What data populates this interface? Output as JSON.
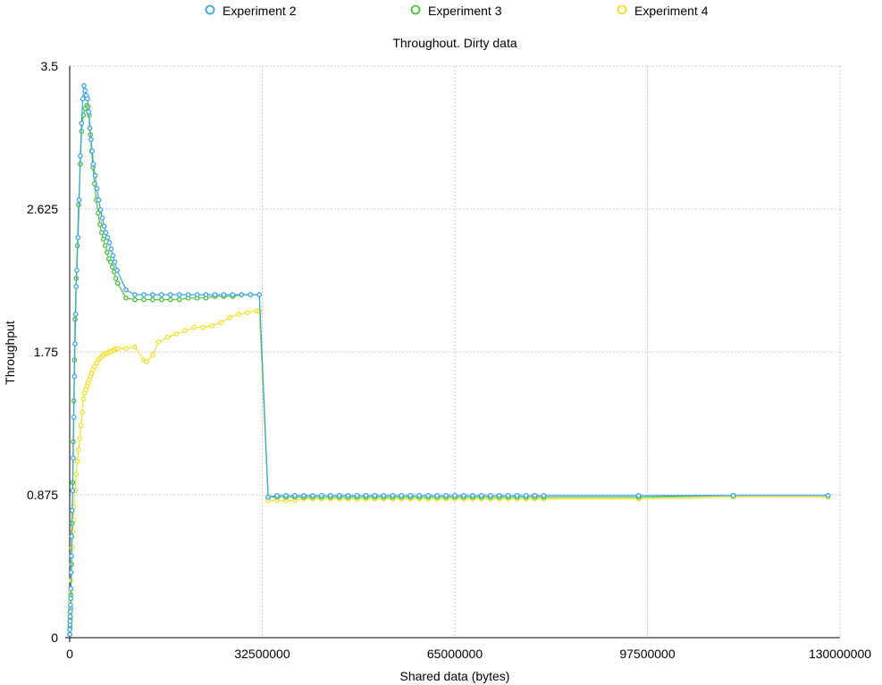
{
  "chart_data": {
    "type": "line",
    "title": "Throughout. Dirty data",
    "xlabel": "Shared data (bytes)",
    "ylabel": "Throughput",
    "xlim": [
      0,
      130000000
    ],
    "ylim": [
      0,
      3.5
    ],
    "xticks": [
      "0",
      "32500000",
      "65000000",
      "97500000",
      "130000000"
    ],
    "yticks": [
      "0",
      "0.875",
      "1.75",
      "2.625",
      "3.5"
    ],
    "grid": true,
    "legend_position": "top",
    "series": [
      {
        "name": "Experiment 2",
        "color": "#3da5e6",
        "points": [
          [
            0,
            0.02
          ],
          [
            20000,
            0.05
          ],
          [
            40000,
            0.08
          ],
          [
            60000,
            0.1
          ],
          [
            80000,
            0.13
          ],
          [
            100000,
            0.16
          ],
          [
            130000,
            0.2
          ],
          [
            160000,
            0.24
          ],
          [
            200000,
            0.3
          ],
          [
            250000,
            0.4
          ],
          [
            300000,
            0.5
          ],
          [
            350000,
            0.62
          ],
          [
            400000,
            0.78
          ],
          [
            500000,
            0.9
          ],
          [
            600000,
            1.1
          ],
          [
            700000,
            1.35
          ],
          [
            800000,
            1.6
          ],
          [
            900000,
            1.8
          ],
          [
            1000000,
            1.98
          ],
          [
            1100000,
            2.15
          ],
          [
            1200000,
            2.25
          ],
          [
            1400000,
            2.45
          ],
          [
            1600000,
            2.68
          ],
          [
            1800000,
            2.95
          ],
          [
            2000000,
            3.15
          ],
          [
            2200000,
            3.3
          ],
          [
            2400000,
            3.38
          ],
          [
            2600000,
            3.35
          ],
          [
            2800000,
            3.32
          ],
          [
            3000000,
            3.3
          ],
          [
            3200000,
            3.22
          ],
          [
            3400000,
            3.12
          ],
          [
            3600000,
            3.05
          ],
          [
            3800000,
            2.98
          ],
          [
            4000000,
            2.9
          ],
          [
            4300000,
            2.83
          ],
          [
            4600000,
            2.75
          ],
          [
            4900000,
            2.68
          ],
          [
            5200000,
            2.62
          ],
          [
            5500000,
            2.57
          ],
          [
            5800000,
            2.52
          ],
          [
            6100000,
            2.48
          ],
          [
            6400000,
            2.45
          ],
          [
            6700000,
            2.42
          ],
          [
            7000000,
            2.38
          ],
          [
            7300000,
            2.34
          ],
          [
            7600000,
            2.3
          ],
          [
            8000000,
            2.25
          ],
          [
            9500000,
            2.13
          ],
          [
            11000000,
            2.1
          ],
          [
            12500000,
            2.1
          ],
          [
            14000000,
            2.1
          ],
          [
            15500000,
            2.1
          ],
          [
            17000000,
            2.1
          ],
          [
            18500000,
            2.1
          ],
          [
            20000000,
            2.1
          ],
          [
            21500000,
            2.1
          ],
          [
            23000000,
            2.1
          ],
          [
            24500000,
            2.1
          ],
          [
            26000000,
            2.1
          ],
          [
            27500000,
            2.1
          ],
          [
            29000000,
            2.1
          ],
          [
            30500000,
            2.1
          ],
          [
            32000000,
            2.1
          ],
          [
            33500000,
            0.86
          ],
          [
            35000000,
            0.87
          ],
          [
            36500000,
            0.87
          ],
          [
            38000000,
            0.87
          ],
          [
            39500000,
            0.87
          ],
          [
            41000000,
            0.87
          ],
          [
            42500000,
            0.87
          ],
          [
            44000000,
            0.87
          ],
          [
            45500000,
            0.87
          ],
          [
            47000000,
            0.87
          ],
          [
            48500000,
            0.87
          ],
          [
            50000000,
            0.87
          ],
          [
            51500000,
            0.87
          ],
          [
            53000000,
            0.87
          ],
          [
            54500000,
            0.87
          ],
          [
            56000000,
            0.87
          ],
          [
            57500000,
            0.87
          ],
          [
            59000000,
            0.87
          ],
          [
            60500000,
            0.87
          ],
          [
            62000000,
            0.87
          ],
          [
            63500000,
            0.87
          ],
          [
            65000000,
            0.87
          ],
          [
            66500000,
            0.87
          ],
          [
            68000000,
            0.87
          ],
          [
            69500000,
            0.87
          ],
          [
            71000000,
            0.87
          ],
          [
            72500000,
            0.87
          ],
          [
            74000000,
            0.87
          ],
          [
            75500000,
            0.87
          ],
          [
            77000000,
            0.87
          ],
          [
            78500000,
            0.87
          ],
          [
            80000000,
            0.87
          ],
          [
            96000000,
            0.87
          ],
          [
            112000000,
            0.87
          ],
          [
            128000000,
            0.87
          ]
        ]
      },
      {
        "name": "Experiment 3",
        "color": "#4cc13a",
        "points": [
          [
            0,
            0.02
          ],
          [
            50000,
            0.06
          ],
          [
            100000,
            0.12
          ],
          [
            150000,
            0.18
          ],
          [
            200000,
            0.26
          ],
          [
            300000,
            0.45
          ],
          [
            400000,
            0.7
          ],
          [
            500000,
            0.95
          ],
          [
            600000,
            1.2
          ],
          [
            700000,
            1.45
          ],
          [
            800000,
            1.7
          ],
          [
            900000,
            1.95
          ],
          [
            1100000,
            2.2
          ],
          [
            1300000,
            2.4
          ],
          [
            1500000,
            2.65
          ],
          [
            1800000,
            2.9
          ],
          [
            2000000,
            3.1
          ],
          [
            2300000,
            3.2
          ],
          [
            2600000,
            3.24
          ],
          [
            2900000,
            3.26
          ],
          [
            3100000,
            3.25
          ],
          [
            3300000,
            3.2
          ],
          [
            3500000,
            3.08
          ],
          [
            3700000,
            2.98
          ],
          [
            3900000,
            2.88
          ],
          [
            4200000,
            2.78
          ],
          [
            4500000,
            2.68
          ],
          [
            4800000,
            2.6
          ],
          [
            5100000,
            2.53
          ],
          [
            5400000,
            2.48
          ],
          [
            5700000,
            2.44
          ],
          [
            6000000,
            2.4
          ],
          [
            6300000,
            2.36
          ],
          [
            6600000,
            2.32
          ],
          [
            6900000,
            2.3
          ],
          [
            7200000,
            2.27
          ],
          [
            7500000,
            2.24
          ],
          [
            7800000,
            2.2
          ],
          [
            8100000,
            2.17
          ],
          [
            9500000,
            2.08
          ],
          [
            11000000,
            2.07
          ],
          [
            12500000,
            2.07
          ],
          [
            14000000,
            2.07
          ],
          [
            15500000,
            2.07
          ],
          [
            17000000,
            2.07
          ],
          [
            18500000,
            2.07
          ],
          [
            20000000,
            2.08
          ],
          [
            21500000,
            2.08
          ],
          [
            23000000,
            2.08
          ],
          [
            24500000,
            2.09
          ],
          [
            26000000,
            2.09
          ],
          [
            27500000,
            2.09
          ],
          [
            29000000,
            2.1
          ],
          [
            30500000,
            2.1
          ],
          [
            32000000,
            2.1
          ],
          [
            33500000,
            0.86
          ],
          [
            35000000,
            0.86
          ],
          [
            36500000,
            0.86
          ],
          [
            38000000,
            0.86
          ],
          [
            39500000,
            0.86
          ],
          [
            41000000,
            0.86
          ],
          [
            42500000,
            0.86
          ],
          [
            44000000,
            0.86
          ],
          [
            45500000,
            0.86
          ],
          [
            47000000,
            0.86
          ],
          [
            48500000,
            0.86
          ],
          [
            50000000,
            0.86
          ],
          [
            51500000,
            0.86
          ],
          [
            53000000,
            0.86
          ],
          [
            54500000,
            0.86
          ],
          [
            56000000,
            0.86
          ],
          [
            57500000,
            0.86
          ],
          [
            59000000,
            0.86
          ],
          [
            60500000,
            0.86
          ],
          [
            62000000,
            0.86
          ],
          [
            63500000,
            0.86
          ],
          [
            65000000,
            0.86
          ],
          [
            66500000,
            0.86
          ],
          [
            68000000,
            0.86
          ],
          [
            69500000,
            0.86
          ],
          [
            71000000,
            0.86
          ],
          [
            72500000,
            0.86
          ],
          [
            74000000,
            0.86
          ],
          [
            75500000,
            0.86
          ],
          [
            77000000,
            0.86
          ],
          [
            78500000,
            0.86
          ],
          [
            80000000,
            0.86
          ],
          [
            96000000,
            0.86
          ],
          [
            112000000,
            0.87
          ],
          [
            128000000,
            0.87
          ]
        ]
      },
      {
        "name": "Experiment 4",
        "color": "#f0e12a",
        "points": [
          [
            0,
            0.1
          ],
          [
            50000,
            0.15
          ],
          [
            100000,
            0.22
          ],
          [
            150000,
            0.28
          ],
          [
            200000,
            0.35
          ],
          [
            300000,
            0.45
          ],
          [
            400000,
            0.55
          ],
          [
            500000,
            0.65
          ],
          [
            600000,
            0.72
          ],
          [
            700000,
            0.8
          ],
          [
            900000,
            0.9
          ],
          [
            1100000,
            1.0
          ],
          [
            1300000,
            1.08
          ],
          [
            1500000,
            1.15
          ],
          [
            1700000,
            1.22
          ],
          [
            1900000,
            1.3
          ],
          [
            2100000,
            1.38
          ],
          [
            2300000,
            1.46
          ],
          [
            2500000,
            1.5
          ],
          [
            2700000,
            1.52
          ],
          [
            2900000,
            1.54
          ],
          [
            3100000,
            1.56
          ],
          [
            3300000,
            1.58
          ],
          [
            3500000,
            1.6
          ],
          [
            3700000,
            1.62
          ],
          [
            3900000,
            1.64
          ],
          [
            4200000,
            1.66
          ],
          [
            4500000,
            1.68
          ],
          [
            4800000,
            1.7
          ],
          [
            5100000,
            1.71
          ],
          [
            5400000,
            1.72
          ],
          [
            5700000,
            1.73
          ],
          [
            6000000,
            1.74
          ],
          [
            6300000,
            1.74
          ],
          [
            6600000,
            1.75
          ],
          [
            6900000,
            1.75
          ],
          [
            7200000,
            1.76
          ],
          [
            7500000,
            1.76
          ],
          [
            7800000,
            1.77
          ],
          [
            8100000,
            1.77
          ],
          [
            9500000,
            1.77
          ],
          [
            11000000,
            1.78
          ],
          [
            12500000,
            1.7
          ],
          [
            13000000,
            1.69
          ],
          [
            14000000,
            1.73
          ],
          [
            15000000,
            1.81
          ],
          [
            16500000,
            1.84
          ],
          [
            18000000,
            1.86
          ],
          [
            19500000,
            1.88
          ],
          [
            21000000,
            1.9
          ],
          [
            22500000,
            1.9
          ],
          [
            24000000,
            1.91
          ],
          [
            25500000,
            1.93
          ],
          [
            27000000,
            1.96
          ],
          [
            28500000,
            1.98
          ],
          [
            30000000,
            1.99
          ],
          [
            31500000,
            2.0
          ],
          [
            32000000,
            2.0
          ],
          [
            33500000,
            0.84
          ],
          [
            35000000,
            0.84
          ],
          [
            36500000,
            0.84
          ],
          [
            38000000,
            0.84
          ],
          [
            39500000,
            0.85
          ],
          [
            41000000,
            0.85
          ],
          [
            42500000,
            0.85
          ],
          [
            44000000,
            0.85
          ],
          [
            45500000,
            0.85
          ],
          [
            47000000,
            0.85
          ],
          [
            48500000,
            0.85
          ],
          [
            50000000,
            0.85
          ],
          [
            51500000,
            0.85
          ],
          [
            53000000,
            0.85
          ],
          [
            54500000,
            0.85
          ],
          [
            56000000,
            0.85
          ],
          [
            57500000,
            0.85
          ],
          [
            59000000,
            0.85
          ],
          [
            60500000,
            0.85
          ],
          [
            62000000,
            0.85
          ],
          [
            63500000,
            0.85
          ],
          [
            65000000,
            0.85
          ],
          [
            66500000,
            0.85
          ],
          [
            68000000,
            0.85
          ],
          [
            69500000,
            0.85
          ],
          [
            71000000,
            0.85
          ],
          [
            72500000,
            0.85
          ],
          [
            74000000,
            0.85
          ],
          [
            75500000,
            0.85
          ],
          [
            77000000,
            0.85
          ],
          [
            78500000,
            0.85
          ],
          [
            80000000,
            0.85
          ],
          [
            96000000,
            0.85
          ],
          [
            112000000,
            0.86
          ],
          [
            128000000,
            0.86
          ]
        ]
      }
    ]
  }
}
